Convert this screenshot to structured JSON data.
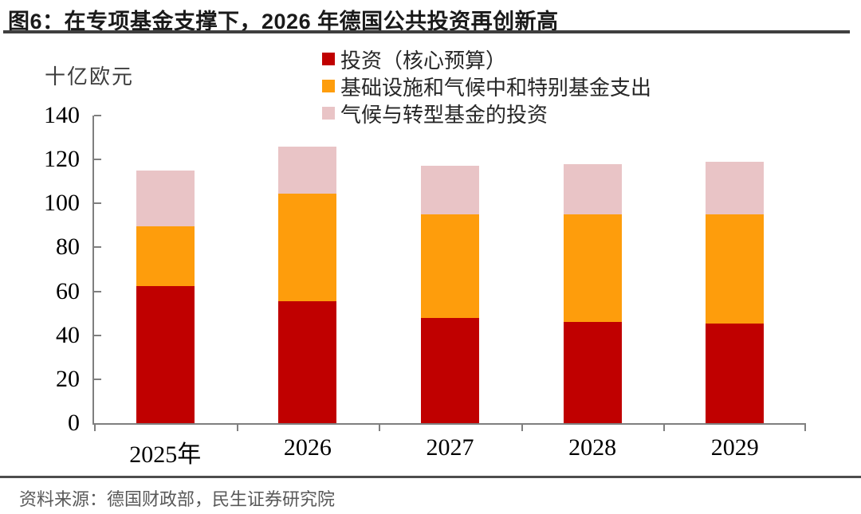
{
  "header": {
    "title": "图6：在专项基金支撑下，2026 年德国公共投资再创新高"
  },
  "chart_data": {
    "type": "bar",
    "stacked": true,
    "title": "在专项基金支撑下，2026 年德国公共投资再创新高",
    "unit_label": "十亿欧元",
    "categories": [
      "2025年",
      "2026",
      "2027",
      "2028",
      "2029"
    ],
    "series": [
      {
        "name": "投资（核心预算）",
        "color": "#c00000",
        "values": [
          62.5,
          55.5,
          48,
          46,
          45.5
        ]
      },
      {
        "name": "基础设施和气候中和特别基金支出",
        "color": "#fe9d0c",
        "values": [
          27,
          49,
          47,
          49,
          49.5
        ]
      },
      {
        "name": "气候与转型基金的投资",
        "color": "#e9c4c6",
        "values": [
          25.5,
          21.5,
          22,
          23,
          24
        ]
      }
    ],
    "totals": [
      115,
      126,
      117,
      118,
      119
    ],
    "ylim": [
      0,
      140
    ],
    "yticks": [
      0,
      20,
      40,
      60,
      80,
      100,
      120,
      140
    ],
    "legend_position": "top",
    "grid": false,
    "axis_color": "#7f7f7f"
  },
  "footer": {
    "source": "资料来源：德国财政部，民生证券研究院"
  }
}
